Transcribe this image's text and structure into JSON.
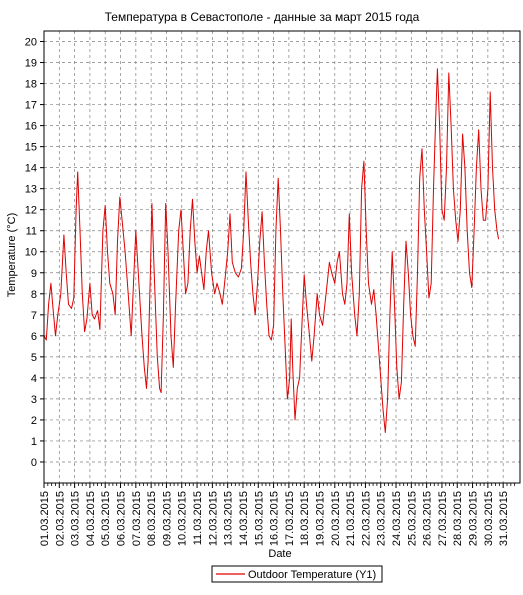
{
  "chart_data": {
    "type": "line",
    "title": "Температура в Севастополе - данные за март 2015 года",
    "xlabel": "Date",
    "ylabel": "Temperature (°C)",
    "ylim": [
      -1,
      20.5
    ],
    "yticks": [
      0,
      1,
      2,
      3,
      4,
      5,
      6,
      7,
      8,
      9,
      10,
      11,
      12,
      13,
      14,
      15,
      16,
      17,
      18,
      19,
      20
    ],
    "grid": true,
    "legend_position": "bottom-center",
    "categories": [
      "01.03.2015",
      "02.03.2015",
      "03.03.2015",
      "04.03.2015",
      "05.03.2015",
      "06.03.2015",
      "07.03.2015",
      "08.03.2015",
      "09.03.2015",
      "10.03.2015",
      "11.03.2015",
      "12.03.2015",
      "13.03.2015",
      "14.03.2015",
      "15.03.2015",
      "16.03.2015",
      "17.03.2015",
      "18.03.2015",
      "19.03.2015",
      "20.03.2015",
      "21.03.2015",
      "22.03.2015",
      "23.03.2015",
      "24.03.2015",
      "25.03.2015",
      "26.03.2015",
      "27.03.2015",
      "28.03.2015",
      "29.03.2015",
      "30.03.2015",
      "31.03.2015"
    ],
    "x_range_days": [
      0,
      31.1
    ],
    "series": [
      {
        "name": "Outdoor Temperature (Y1)",
        "color": "#e00000",
        "points": [
          [
            0.0,
            6.0
          ],
          [
            0.15,
            5.8
          ],
          [
            0.3,
            7.5
          ],
          [
            0.45,
            8.5
          ],
          [
            0.6,
            7.2
          ],
          [
            0.75,
            6.0
          ],
          [
            0.9,
            7.0
          ],
          [
            1.1,
            8.0
          ],
          [
            1.3,
            10.8
          ],
          [
            1.45,
            9.0
          ],
          [
            1.6,
            7.5
          ],
          [
            1.8,
            7.3
          ],
          [
            1.95,
            7.8
          ],
          [
            2.1,
            12.0
          ],
          [
            2.2,
            13.8
          ],
          [
            2.35,
            11.0
          ],
          [
            2.5,
            8.0
          ],
          [
            2.65,
            6.2
          ],
          [
            2.8,
            6.8
          ],
          [
            3.0,
            8.5
          ],
          [
            3.15,
            7.0
          ],
          [
            3.3,
            6.8
          ],
          [
            3.5,
            7.2
          ],
          [
            3.65,
            6.3
          ],
          [
            3.85,
            11.0
          ],
          [
            4.0,
            12.2
          ],
          [
            4.15,
            10.0
          ],
          [
            4.3,
            8.5
          ],
          [
            4.5,
            8.0
          ],
          [
            4.65,
            7.0
          ],
          [
            4.8,
            10.5
          ],
          [
            4.95,
            12.6
          ],
          [
            5.1,
            11.5
          ],
          [
            5.3,
            10.0
          ],
          [
            5.5,
            8.0
          ],
          [
            5.7,
            6.0
          ],
          [
            5.85,
            8.5
          ],
          [
            6.0,
            11.0
          ],
          [
            6.2,
            8.5
          ],
          [
            6.4,
            6.0
          ],
          [
            6.55,
            4.5
          ],
          [
            6.7,
            3.5
          ],
          [
            6.8,
            4.8
          ],
          [
            6.95,
            9.0
          ],
          [
            7.05,
            12.3
          ],
          [
            7.2,
            9.0
          ],
          [
            7.4,
            5.0
          ],
          [
            7.55,
            3.5
          ],
          [
            7.65,
            3.3
          ],
          [
            7.8,
            7.0
          ],
          [
            7.95,
            12.3
          ],
          [
            8.1,
            10.0
          ],
          [
            8.3,
            6.0
          ],
          [
            8.45,
            4.5
          ],
          [
            8.6,
            7.5
          ],
          [
            8.8,
            11.0
          ],
          [
            8.95,
            12.0
          ],
          [
            9.1,
            10.0
          ],
          [
            9.25,
            8.0
          ],
          [
            9.4,
            8.5
          ],
          [
            9.55,
            11.0
          ],
          [
            9.7,
            12.5
          ],
          [
            9.85,
            10.5
          ],
          [
            10.0,
            9.0
          ],
          [
            10.15,
            9.8
          ],
          [
            10.3,
            9.0
          ],
          [
            10.45,
            8.2
          ],
          [
            10.6,
            10.0
          ],
          [
            10.75,
            11.0
          ],
          [
            10.95,
            9.0
          ],
          [
            11.15,
            8.0
          ],
          [
            11.3,
            8.5
          ],
          [
            11.5,
            8.0
          ],
          [
            11.65,
            7.5
          ],
          [
            11.8,
            8.5
          ],
          [
            12.0,
            10.0
          ],
          [
            12.15,
            11.8
          ],
          [
            12.3,
            9.5
          ],
          [
            12.5,
            9.0
          ],
          [
            12.7,
            8.8
          ],
          [
            12.9,
            9.2
          ],
          [
            13.05,
            11.0
          ],
          [
            13.2,
            13.8
          ],
          [
            13.35,
            11.5
          ],
          [
            13.5,
            9.5
          ],
          [
            13.65,
            8.0
          ],
          [
            13.8,
            7.0
          ],
          [
            13.95,
            8.5
          ],
          [
            14.1,
            10.5
          ],
          [
            14.25,
            11.9
          ],
          [
            14.4,
            9.5
          ],
          [
            14.55,
            7.5
          ],
          [
            14.7,
            6.0
          ],
          [
            14.85,
            5.8
          ],
          [
            15.0,
            6.5
          ],
          [
            15.15,
            11.0
          ],
          [
            15.3,
            13.5
          ],
          [
            15.45,
            11.0
          ],
          [
            15.6,
            8.0
          ],
          [
            15.75,
            5.5
          ],
          [
            15.9,
            3.0
          ],
          [
            16.05,
            4.0
          ],
          [
            16.15,
            6.8
          ],
          [
            16.25,
            4.5
          ],
          [
            16.4,
            2.0
          ],
          [
            16.55,
            3.5
          ],
          [
            16.7,
            4.0
          ],
          [
            16.85,
            6.5
          ],
          [
            17.0,
            8.9
          ],
          [
            17.15,
            7.5
          ],
          [
            17.35,
            6.0
          ],
          [
            17.5,
            4.8
          ],
          [
            17.65,
            6.0
          ],
          [
            17.85,
            8.0
          ],
          [
            18.0,
            7.0
          ],
          [
            18.2,
            6.5
          ],
          [
            18.35,
            7.5
          ],
          [
            18.5,
            8.5
          ],
          [
            18.65,
            9.5
          ],
          [
            18.8,
            9.0
          ],
          [
            19.0,
            8.5
          ],
          [
            19.15,
            9.5
          ],
          [
            19.3,
            10.0
          ],
          [
            19.5,
            8.0
          ],
          [
            19.65,
            7.5
          ],
          [
            19.8,
            8.5
          ],
          [
            19.95,
            11.8
          ],
          [
            20.1,
            9.0
          ],
          [
            20.3,
            7.0
          ],
          [
            20.45,
            6.0
          ],
          [
            20.6,
            8.0
          ],
          [
            20.75,
            13.0
          ],
          [
            20.9,
            14.3
          ],
          [
            21.05,
            11.0
          ],
          [
            21.2,
            8.5
          ],
          [
            21.4,
            7.5
          ],
          [
            21.55,
            8.2
          ],
          [
            21.7,
            7.0
          ],
          [
            21.85,
            5.5
          ],
          [
            22.0,
            4.0
          ],
          [
            22.15,
            2.5
          ],
          [
            22.3,
            1.4
          ],
          [
            22.45,
            3.0
          ],
          [
            22.6,
            7.0
          ],
          [
            22.75,
            10.0
          ],
          [
            22.9,
            7.5
          ],
          [
            23.05,
            4.5
          ],
          [
            23.2,
            3.0
          ],
          [
            23.35,
            3.8
          ],
          [
            23.5,
            7.5
          ],
          [
            23.65,
            10.5
          ],
          [
            23.8,
            9.0
          ],
          [
            23.95,
            7.0
          ],
          [
            24.1,
            6.0
          ],
          [
            24.25,
            5.5
          ],
          [
            24.4,
            9.0
          ],
          [
            24.55,
            13.5
          ],
          [
            24.7,
            14.9
          ],
          [
            24.85,
            12.0
          ],
          [
            25.0,
            10.0
          ],
          [
            25.15,
            7.8
          ],
          [
            25.3,
            8.5
          ],
          [
            25.45,
            13.0
          ],
          [
            25.6,
            16.5
          ],
          [
            25.7,
            18.7
          ],
          [
            25.85,
            16.0
          ],
          [
            26.0,
            12.0
          ],
          [
            26.15,
            11.5
          ],
          [
            26.3,
            14.0
          ],
          [
            26.45,
            18.5
          ],
          [
            26.6,
            16.0
          ],
          [
            26.75,
            13.0
          ],
          [
            26.9,
            11.5
          ],
          [
            27.05,
            10.5
          ],
          [
            27.2,
            12.0
          ],
          [
            27.35,
            15.6
          ],
          [
            27.5,
            14.0
          ],
          [
            27.65,
            11.0
          ],
          [
            27.8,
            9.0
          ],
          [
            27.95,
            8.3
          ],
          [
            28.1,
            11.0
          ],
          [
            28.25,
            14.0
          ],
          [
            28.4,
            15.8
          ],
          [
            28.55,
            13.0
          ],
          [
            28.7,
            11.5
          ],
          [
            28.85,
            11.5
          ],
          [
            29.0,
            13.0
          ],
          [
            29.15,
            17.6
          ],
          [
            29.3,
            14.0
          ],
          [
            29.45,
            12.0
          ],
          [
            29.6,
            11.0
          ],
          [
            29.7,
            10.6
          ]
        ]
      }
    ]
  }
}
